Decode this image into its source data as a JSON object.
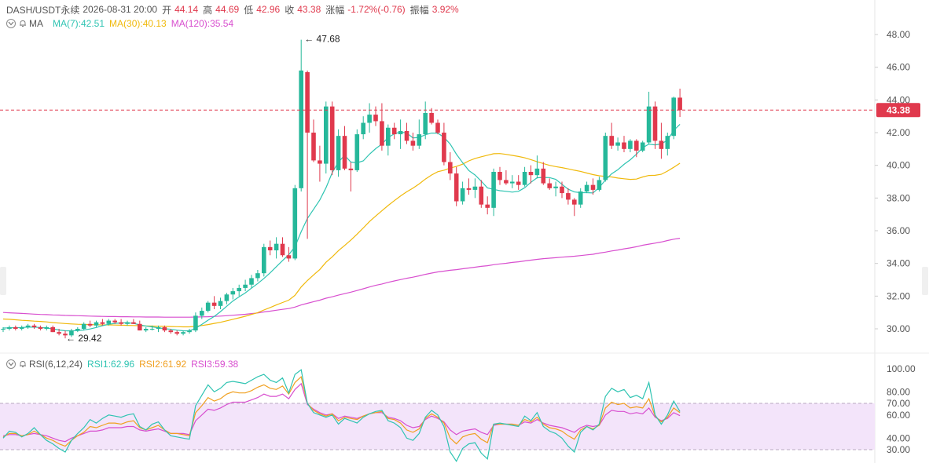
{
  "header": {
    "symbol": "DASH/USDT永续",
    "datetime": "2026-08-31 20:00",
    "open_label": "开",
    "open": "44.14",
    "high_label": "高",
    "high": "44.69",
    "low_label": "低",
    "low": "42.96",
    "close_label": "收",
    "close": "43.38",
    "change_label": "涨幅",
    "change": "-1.72%(-0.76)",
    "amp_label": "振幅",
    "amp": "3.92%"
  },
  "ma_legend": {
    "label": "MA",
    "ma7": "MA(7):42.51",
    "ma30": "MA(30):40.13",
    "ma120": "MA(120):35.54"
  },
  "rsi_legend": {
    "label": "RSI(6,12,24)",
    "rsi1": "RSI1:62.96",
    "rsi2": "RSI2:61.92",
    "rsi3": "RSI3:59.38"
  },
  "colors": {
    "up": "#26b89a",
    "down": "#e0394d",
    "ma7": "#2fc4b2",
    "ma30": "#f0b90b",
    "ma120": "#d84fcf",
    "rsi1": "#2fc4b2",
    "rsi2": "#f0a020",
    "rsi3": "#d84fcf",
    "rsi_band": "#f3e4fa"
  },
  "chart_data": [
    {
      "type": "candlestick",
      "y_ticks": [
        "48.00",
        "46.00",
        "44.00",
        "42.00",
        "40.00",
        "38.00",
        "36.00",
        "34.00",
        "32.00",
        "30.00"
      ],
      "ylim": [
        29.0,
        49.0
      ],
      "last_price": "43.38",
      "annotations": {
        "high": "47.68",
        "low": "29.42"
      },
      "candles": [
        [
          30.0,
          30.1,
          29.8,
          30.0
        ],
        [
          30.0,
          30.2,
          29.9,
          30.1
        ],
        [
          30.1,
          30.2,
          29.9,
          30.0
        ],
        [
          30.0,
          30.2,
          29.9,
          30.1
        ],
        [
          30.1,
          30.3,
          30.0,
          30.2
        ],
        [
          30.2,
          30.3,
          30.0,
          30.1
        ],
        [
          30.1,
          30.2,
          29.9,
          30.0
        ],
        [
          30.0,
          30.2,
          29.9,
          30.1
        ],
        [
          30.1,
          30.2,
          29.8,
          29.8
        ],
        [
          29.8,
          30.0,
          29.6,
          29.7
        ],
        [
          29.7,
          29.9,
          29.42,
          29.6
        ],
        [
          29.6,
          30.0,
          29.5,
          29.9
        ],
        [
          29.9,
          30.1,
          29.8,
          30.0
        ],
        [
          30.0,
          30.4,
          29.9,
          30.3
        ],
        [
          30.3,
          30.5,
          30.1,
          30.2
        ],
        [
          30.2,
          30.5,
          30.1,
          30.4
        ],
        [
          30.4,
          30.6,
          30.2,
          30.3
        ],
        [
          30.3,
          30.6,
          30.2,
          30.5
        ],
        [
          30.5,
          30.6,
          30.3,
          30.4
        ],
        [
          30.4,
          30.6,
          30.2,
          30.3
        ],
        [
          30.3,
          30.5,
          30.2,
          30.4
        ],
        [
          30.4,
          30.6,
          30.3,
          30.3
        ],
        [
          30.3,
          30.5,
          29.9,
          29.9
        ],
        [
          29.9,
          30.1,
          29.8,
          30.0
        ],
        [
          30.0,
          30.2,
          29.9,
          30.0
        ],
        [
          30.0,
          30.2,
          29.8,
          30.1
        ],
        [
          30.1,
          30.2,
          29.8,
          29.9
        ],
        [
          29.9,
          30.0,
          29.7,
          29.8
        ],
        [
          29.8,
          29.9,
          29.6,
          29.7
        ],
        [
          29.7,
          29.9,
          29.6,
          29.8
        ],
        [
          29.8,
          30.0,
          29.7,
          29.9
        ],
        [
          29.9,
          31.0,
          29.8,
          30.8
        ],
        [
          30.8,
          31.3,
          30.6,
          31.1
        ],
        [
          31.1,
          31.7,
          31.0,
          31.6
        ],
        [
          31.6,
          32.0,
          31.2,
          31.4
        ],
        [
          31.4,
          31.9,
          31.2,
          31.7
        ],
        [
          31.7,
          32.2,
          31.5,
          32.1
        ],
        [
          32.1,
          32.5,
          31.8,
          32.3
        ],
        [
          32.3,
          32.7,
          32.0,
          32.5
        ],
        [
          32.5,
          33.0,
          32.3,
          32.7
        ],
        [
          32.7,
          33.3,
          32.5,
          33.1
        ],
        [
          33.1,
          33.6,
          32.9,
          33.4
        ],
        [
          33.4,
          35.2,
          33.2,
          35.0
        ],
        [
          35.0,
          35.4,
          34.5,
          34.8
        ],
        [
          34.8,
          35.6,
          34.3,
          35.2
        ],
        [
          35.2,
          35.6,
          34.4,
          34.5
        ],
        [
          34.5,
          35.0,
          34.1,
          34.3
        ],
        [
          34.3,
          38.8,
          34.2,
          38.6
        ],
        [
          38.6,
          47.68,
          38.4,
          45.8
        ],
        [
          45.7,
          45.8,
          35.5,
          42.0
        ],
        [
          42.0,
          42.8,
          40.2,
          40.3
        ],
        [
          40.3,
          41.2,
          39.0,
          40.1
        ],
        [
          40.1,
          43.9,
          39.5,
          43.6
        ],
        [
          43.6,
          43.9,
          39.4,
          39.7
        ],
        [
          39.7,
          42.2,
          39.3,
          41.8
        ],
        [
          41.8,
          42.4,
          39.7,
          39.8
        ],
        [
          39.8,
          40.2,
          38.4,
          39.7
        ],
        [
          39.7,
          42.2,
          39.6,
          41.9
        ],
        [
          41.9,
          43.0,
          41.6,
          42.6
        ],
        [
          42.6,
          43.8,
          42.0,
          43.1
        ],
        [
          43.1,
          43.6,
          42.4,
          42.7
        ],
        [
          42.7,
          43.8,
          40.9,
          41.2
        ],
        [
          41.2,
          42.5,
          40.6,
          42.3
        ],
        [
          42.3,
          42.6,
          41.6,
          41.9
        ],
        [
          41.9,
          42.8,
          41.0,
          42.1
        ],
        [
          42.1,
          42.6,
          41.3,
          41.5
        ],
        [
          41.5,
          42.0,
          40.9,
          41.2
        ],
        [
          41.2,
          42.8,
          41.0,
          41.9
        ],
        [
          41.9,
          43.9,
          41.6,
          43.2
        ],
        [
          43.2,
          43.5,
          42.5,
          42.6
        ],
        [
          42.6,
          42.8,
          41.9,
          42.0
        ],
        [
          42.0,
          42.6,
          40.0,
          40.2
        ],
        [
          40.2,
          40.8,
          39.1,
          39.5
        ],
        [
          39.5,
          39.9,
          37.5,
          37.8
        ],
        [
          37.8,
          39.0,
          37.6,
          38.6
        ],
        [
          38.6,
          39.2,
          38.2,
          38.5
        ],
        [
          38.5,
          39.2,
          38.0,
          38.7
        ],
        [
          38.7,
          39.1,
          37.4,
          37.6
        ],
        [
          37.6,
          38.1,
          37.0,
          37.4
        ],
        [
          37.4,
          39.8,
          36.9,
          39.6
        ],
        [
          39.6,
          39.9,
          38.8,
          39.1
        ],
        [
          39.1,
          39.7,
          38.8,
          38.9
        ],
        [
          38.9,
          39.4,
          38.6,
          39.0
        ],
        [
          39.0,
          39.4,
          38.5,
          38.8
        ],
        [
          38.8,
          39.9,
          38.7,
          39.6
        ],
        [
          39.6,
          40.0,
          38.9,
          39.4
        ],
        [
          39.4,
          40.6,
          39.2,
          39.8
        ],
        [
          39.8,
          40.2,
          38.8,
          38.9
        ],
        [
          38.9,
          39.2,
          38.5,
          38.6
        ],
        [
          38.6,
          39.0,
          38.1,
          38.7
        ],
        [
          38.7,
          39.0,
          38.0,
          38.3
        ],
        [
          38.3,
          38.6,
          37.6,
          37.9
        ],
        [
          37.9,
          38.0,
          36.9,
          37.6
        ],
        [
          37.6,
          38.6,
          37.4,
          38.4
        ],
        [
          38.4,
          39.0,
          38.3,
          38.8
        ],
        [
          38.8,
          39.2,
          38.2,
          38.5
        ],
        [
          38.5,
          39.3,
          38.4,
          39.1
        ],
        [
          39.1,
          42.0,
          39.0,
          41.8
        ],
        [
          41.8,
          42.6,
          41.0,
          41.2
        ],
        [
          41.2,
          41.7,
          40.9,
          41.4
        ],
        [
          41.4,
          41.8,
          40.8,
          41.0
        ],
        [
          41.0,
          41.6,
          40.8,
          41.5
        ],
        [
          41.5,
          41.6,
          40.5,
          40.9
        ],
        [
          40.9,
          41.5,
          40.8,
          41.4
        ],
        [
          41.4,
          44.5,
          41.3,
          43.6
        ],
        [
          43.6,
          43.9,
          41.0,
          41.5
        ],
        [
          41.5,
          42.6,
          40.4,
          41.0
        ],
        [
          41.0,
          42.0,
          40.6,
          41.8
        ],
        [
          41.8,
          44.2,
          41.6,
          44.14
        ],
        [
          44.14,
          44.69,
          42.96,
          43.38
        ]
      ],
      "ma7": [
        30.05,
        30.06,
        30.07,
        30.08,
        30.1,
        30.1,
        30.08,
        30.05,
        30.0,
        29.93,
        29.88,
        29.87,
        29.89,
        29.93,
        29.99,
        30.08,
        30.19,
        30.28,
        30.33,
        30.36,
        30.37,
        30.33,
        30.24,
        30.17,
        30.12,
        30.06,
        30.01,
        29.97,
        29.92,
        29.88,
        29.87,
        30.04,
        30.27,
        30.53,
        30.76,
        31.05,
        31.38,
        31.7,
        31.96,
        32.2,
        32.49,
        32.77,
        33.08,
        33.42,
        33.8,
        34.17,
        34.53,
        35.02,
        35.94,
        36.75,
        37.31,
        37.88,
        38.63,
        39.55,
        40.2,
        40.61,
        40.2,
        40.15,
        40.27,
        40.68,
        41.02,
        41.3,
        41.7,
        41.93,
        42.04,
        41.98,
        41.68,
        41.7,
        41.87,
        41.97,
        41.97,
        41.71,
        41.3,
        40.68,
        40.16,
        39.68,
        39.41,
        39.03,
        38.62,
        38.53,
        38.45,
        38.41,
        38.36,
        38.41,
        38.63,
        38.96,
        39.24,
        39.26,
        39.25,
        39.14,
        38.84,
        38.54,
        38.37,
        38.33,
        38.33,
        38.31,
        38.65,
        39.1,
        39.48,
        39.73,
        40.06,
        40.34,
        40.68,
        41.08,
        41.3,
        41.25,
        41.31,
        41.54,
        42.14,
        42.51
      ],
      "ma30": [
        30.6,
        30.58,
        30.55,
        30.52,
        30.5,
        30.47,
        30.45,
        30.42,
        30.38,
        30.35,
        30.32,
        30.3,
        30.28,
        30.27,
        30.26,
        30.25,
        30.24,
        30.24,
        30.23,
        30.22,
        30.21,
        30.2,
        30.19,
        30.18,
        30.17,
        30.16,
        30.15,
        30.14,
        30.13,
        30.12,
        30.12,
        30.15,
        30.2,
        30.26,
        30.33,
        30.4,
        30.49,
        30.58,
        30.67,
        30.77,
        30.88,
        30.99,
        31.15,
        31.3,
        31.46,
        31.61,
        31.75,
        32.05,
        32.56,
        32.95,
        33.3,
        33.63,
        34.07,
        34.4,
        34.78,
        35.1,
        35.43,
        35.79,
        36.17,
        36.56,
        36.9,
        37.22,
        37.54,
        37.84,
        38.12,
        38.38,
        38.6,
        38.86,
        39.16,
        39.41,
        39.61,
        39.7,
        39.83,
        39.93,
        40.07,
        40.27,
        40.42,
        40.52,
        40.62,
        40.71,
        40.72,
        40.67,
        40.61,
        40.54,
        40.46,
        40.35,
        40.22,
        40.11,
        40.0,
        39.92,
        39.86,
        39.78,
        39.7,
        39.63,
        39.53,
        39.43,
        39.36,
        39.32,
        39.29,
        39.22,
        39.18,
        39.14,
        39.16,
        39.29,
        39.38,
        39.39,
        39.45,
        39.65,
        39.88,
        40.13
      ],
      "ma120": [
        31.0,
        30.98,
        30.96,
        30.94,
        30.92,
        30.9,
        30.88,
        30.87,
        30.85,
        30.84,
        30.82,
        30.81,
        30.8,
        30.79,
        30.78,
        30.77,
        30.76,
        30.75,
        30.75,
        30.74,
        30.74,
        30.73,
        30.73,
        30.72,
        30.72,
        30.72,
        30.71,
        30.71,
        30.71,
        30.71,
        30.71,
        30.72,
        30.73,
        30.74,
        30.76,
        30.78,
        30.8,
        30.83,
        30.86,
        30.89,
        30.93,
        30.97,
        31.03,
        31.08,
        31.14,
        31.19,
        31.24,
        31.33,
        31.46,
        31.56,
        31.66,
        31.75,
        31.87,
        31.96,
        32.06,
        32.15,
        32.24,
        32.34,
        32.45,
        32.56,
        32.66,
        32.74,
        32.84,
        32.93,
        33.01,
        33.09,
        33.16,
        33.24,
        33.33,
        33.41,
        33.48,
        33.53,
        33.58,
        33.62,
        33.67,
        33.72,
        33.77,
        33.82,
        33.86,
        33.92,
        33.97,
        34.01,
        34.06,
        34.1,
        34.15,
        34.2,
        34.25,
        34.29,
        34.32,
        34.35,
        34.38,
        34.41,
        34.44,
        34.48,
        34.52,
        34.56,
        34.63,
        34.69,
        34.76,
        34.82,
        34.89,
        34.95,
        35.02,
        35.11,
        35.18,
        35.24,
        35.31,
        35.4,
        35.48,
        35.54
      ]
    },
    {
      "type": "line",
      "y_ticks": [
        "100.00",
        "80.00",
        "70.00",
        "60.00",
        "40.00",
        "30.00"
      ],
      "ylim": [
        25,
        102
      ],
      "band": [
        30,
        70
      ],
      "rsi1": [
        40,
        46,
        45,
        41,
        44,
        49,
        43,
        38,
        35,
        31,
        28,
        38,
        44,
        49,
        56,
        53,
        57,
        60,
        59,
        58,
        60,
        61,
        50,
        47,
        52,
        54,
        47,
        42,
        41,
        40,
        39,
        68,
        77,
        86,
        80,
        83,
        88,
        89,
        88,
        87,
        90,
        93,
        95,
        90,
        88,
        92,
        79,
        95,
        99,
        70,
        62,
        60,
        58,
        60,
        52,
        57,
        55,
        53,
        58,
        61,
        63,
        64,
        55,
        53,
        49,
        40,
        38,
        44,
        58,
        64,
        60,
        50,
        28,
        20,
        31,
        35,
        36,
        27,
        22,
        52,
        53,
        52,
        51,
        50,
        59,
        55,
        62,
        50,
        46,
        44,
        40,
        33,
        28,
        45,
        50,
        47,
        52,
        76,
        83,
        80,
        82,
        75,
        77,
        74,
        88,
        60,
        52,
        60,
        72,
        62.96
      ],
      "rsi2": [
        41,
        44,
        44,
        42,
        43,
        46,
        43,
        40,
        38,
        35,
        33,
        38,
        42,
        45,
        50,
        49,
        51,
        53,
        53,
        52,
        54,
        55,
        49,
        47,
        49,
        51,
        47,
        44,
        44,
        43,
        42,
        62,
        68,
        75,
        72,
        74,
        78,
        80,
        79,
        79,
        81,
        84,
        86,
        83,
        82,
        85,
        78,
        88,
        93,
        70,
        64,
        61,
        59,
        61,
        55,
        58,
        57,
        56,
        59,
        61,
        62,
        63,
        57,
        56,
        53,
        47,
        45,
        48,
        57,
        61,
        58,
        53,
        40,
        35,
        41,
        43,
        44,
        39,
        36,
        52,
        52,
        52,
        52,
        51,
        56,
        54,
        58,
        52,
        49,
        48,
        46,
        42,
        39,
        47,
        50,
        48,
        51,
        66,
        71,
        69,
        70,
        66,
        67,
        66,
        74,
        59,
        54,
        58,
        66,
        61.92
      ],
      "rsi3": [
        42,
        43,
        43,
        42,
        43,
        44,
        43,
        42,
        40,
        38,
        37,
        40,
        42,
        44,
        46,
        46,
        47,
        49,
        49,
        49,
        50,
        50,
        47,
        46,
        47,
        48,
        46,
        44,
        44,
        44,
        43,
        55,
        60,
        65,
        64,
        66,
        69,
        71,
        71,
        71,
        73,
        75,
        78,
        76,
        76,
        78,
        74,
        82,
        87,
        69,
        65,
        62,
        60,
        61,
        57,
        59,
        58,
        57,
        59,
        61,
        62,
        62,
        58,
        57,
        55,
        51,
        49,
        50,
        56,
        59,
        57,
        54,
        47,
        43,
        46,
        47,
        48,
        45,
        43,
        51,
        52,
        52,
        52,
        51,
        54,
        53,
        56,
        53,
        51,
        50,
        49,
        47,
        45,
        49,
        51,
        50,
        51,
        60,
        64,
        63,
        63,
        61,
        62,
        61,
        66,
        58,
        55,
        57,
        62,
        59.38
      ]
    }
  ]
}
